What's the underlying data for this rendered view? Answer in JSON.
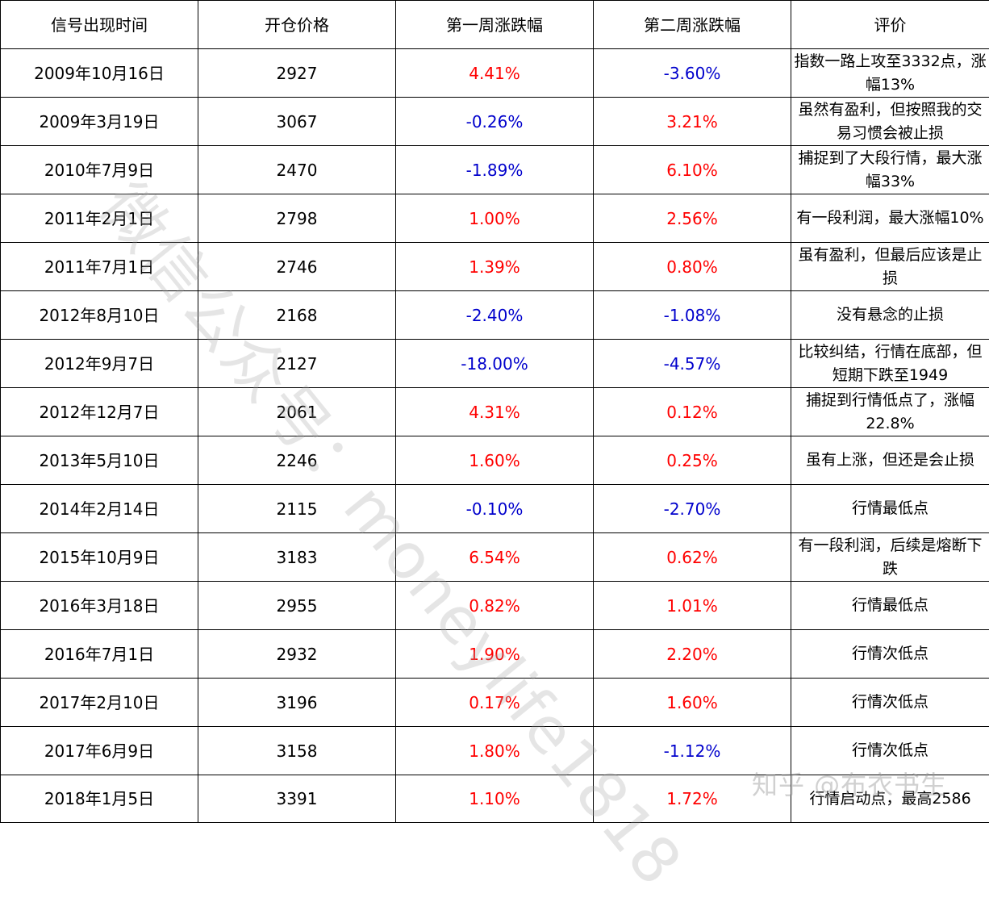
{
  "table": {
    "headers": [
      "信号出现时间",
      "开仓价格",
      "第一周涨跌幅",
      "第二周涨跌幅",
      "评价"
    ],
    "rows": [
      {
        "date": "2009年10月16日",
        "price": "2927",
        "w1": "4.41%",
        "w1_dir": "pos",
        "w2": "-3.60%",
        "w2_dir": "neg",
        "comment": "指数一路上攻至3332点，涨幅13%"
      },
      {
        "date": "2009年3月19日",
        "price": "3067",
        "w1": "-0.26%",
        "w1_dir": "neg",
        "w2": "3.21%",
        "w2_dir": "pos",
        "comment": "虽然有盈利，但按照我的交易习惯会被止损"
      },
      {
        "date": "2010年7月9日",
        "price": "2470",
        "w1": "-1.89%",
        "w1_dir": "neg",
        "w2": "6.10%",
        "w2_dir": "pos",
        "comment": "捕捉到了大段行情，最大涨幅33%"
      },
      {
        "date": "2011年2月1日",
        "price": "2798",
        "w1": "1.00%",
        "w1_dir": "pos",
        "w2": "2.56%",
        "w2_dir": "pos",
        "comment": "有一段利润，最大涨幅10%"
      },
      {
        "date": "2011年7月1日",
        "price": "2746",
        "w1": "1.39%",
        "w1_dir": "pos",
        "w2": "0.80%",
        "w2_dir": "pos",
        "comment": "虽有盈利，但最后应该是止损"
      },
      {
        "date": "2012年8月10日",
        "price": "2168",
        "w1": "-2.40%",
        "w1_dir": "neg",
        "w2": "-1.08%",
        "w2_dir": "neg",
        "comment": "没有悬念的止损"
      },
      {
        "date": "2012年9月7日",
        "price": "2127",
        "w1": "-18.00%",
        "w1_dir": "neg",
        "w2": "-4.57%",
        "w2_dir": "neg",
        "comment": "比较纠结，行情在底部，但短期下跌至1949"
      },
      {
        "date": "2012年12月7日",
        "price": "2061",
        "w1": "4.31%",
        "w1_dir": "pos",
        "w2": "0.12%",
        "w2_dir": "pos",
        "comment": "捕捉到行情低点了，涨幅22.8%"
      },
      {
        "date": "2013年5月10日",
        "price": "2246",
        "w1": "1.60%",
        "w1_dir": "pos",
        "w2": "0.25%",
        "w2_dir": "pos",
        "comment": "虽有上涨，但还是会止损"
      },
      {
        "date": "2014年2月14日",
        "price": "2115",
        "w1": "-0.10%",
        "w1_dir": "neg",
        "w2": "-2.70%",
        "w2_dir": "neg",
        "comment": "行情最低点"
      },
      {
        "date": "2015年10月9日",
        "price": "3183",
        "w1": "6.54%",
        "w1_dir": "pos",
        "w2": "0.62%",
        "w2_dir": "pos",
        "comment": "有一段利润，后续是熔断下跌"
      },
      {
        "date": "2016年3月18日",
        "price": "2955",
        "w1": "0.82%",
        "w1_dir": "pos",
        "w2": "1.01%",
        "w2_dir": "pos",
        "comment": "行情最低点"
      },
      {
        "date": "2016年7月1日",
        "price": "2932",
        "w1": "1.90%",
        "w1_dir": "pos",
        "w2": "2.20%",
        "w2_dir": "pos",
        "comment": "行情次低点"
      },
      {
        "date": "2017年2月10日",
        "price": "3196",
        "w1": "0.17%",
        "w1_dir": "pos",
        "w2": "1.60%",
        "w2_dir": "pos",
        "comment": "行情次低点"
      },
      {
        "date": "2017年6月9日",
        "price": "3158",
        "w1": "1.80%",
        "w1_dir": "pos",
        "w2": "-1.12%",
        "w2_dir": "neg",
        "comment": "行情次低点"
      },
      {
        "date": "2018年1月5日",
        "price": "3391",
        "w1": "1.10%",
        "w1_dir": "pos",
        "w2": "1.72%",
        "w2_dir": "pos",
        "comment": "行情启动点，最高2586"
      }
    ]
  },
  "colors": {
    "positive": "#ff0000",
    "negative": "#0000cc",
    "border": "#000000"
  },
  "watermarks": {
    "diagonal": "微信公众号：moneylife1818",
    "corner": "知乎 @布衣书生"
  }
}
